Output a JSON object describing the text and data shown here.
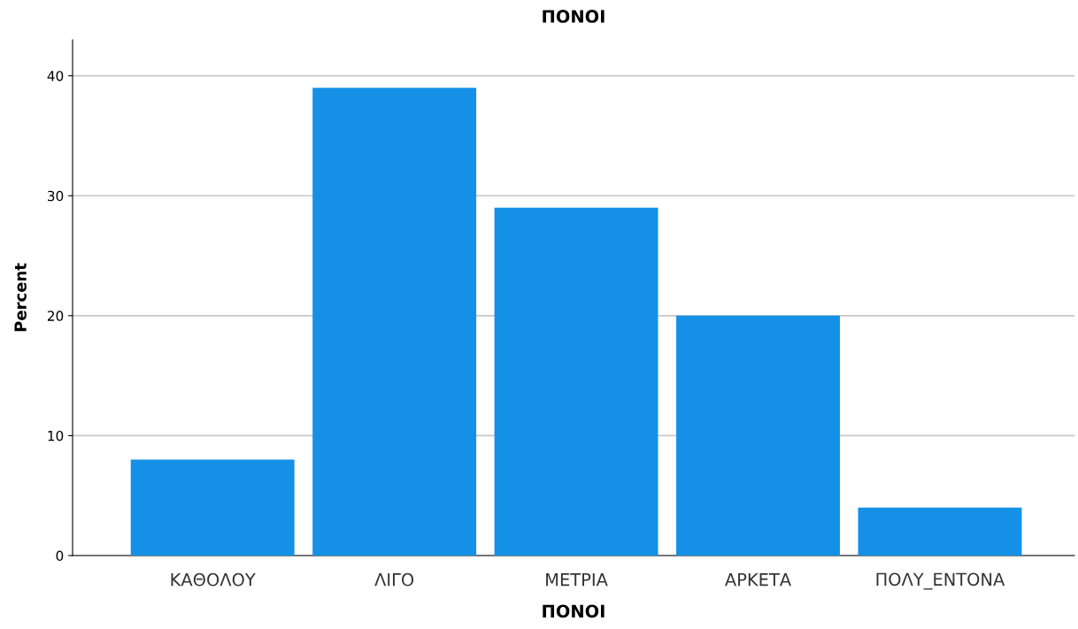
{
  "chart_data": {
    "type": "bar",
    "title": "ΠΟΝΟΙ",
    "xlabel": "ΠΟΝΟΙ",
    "ylabel": "Percent",
    "categories": [
      "ΚΑΘΟΛΟΥ",
      "ΛΙΓΟ",
      "ΜΕΤΡΙΑ",
      "ΑΡΚΕΤΑ",
      "ΠΟΛΥ_ΕΝΤΟΝΑ"
    ],
    "values": [
      8,
      39,
      29,
      20,
      4
    ],
    "color": "#1491e6",
    "ylim": [
      0,
      43
    ],
    "yticks": [
      0,
      10,
      20,
      30,
      40
    ],
    "grid": "y"
  }
}
